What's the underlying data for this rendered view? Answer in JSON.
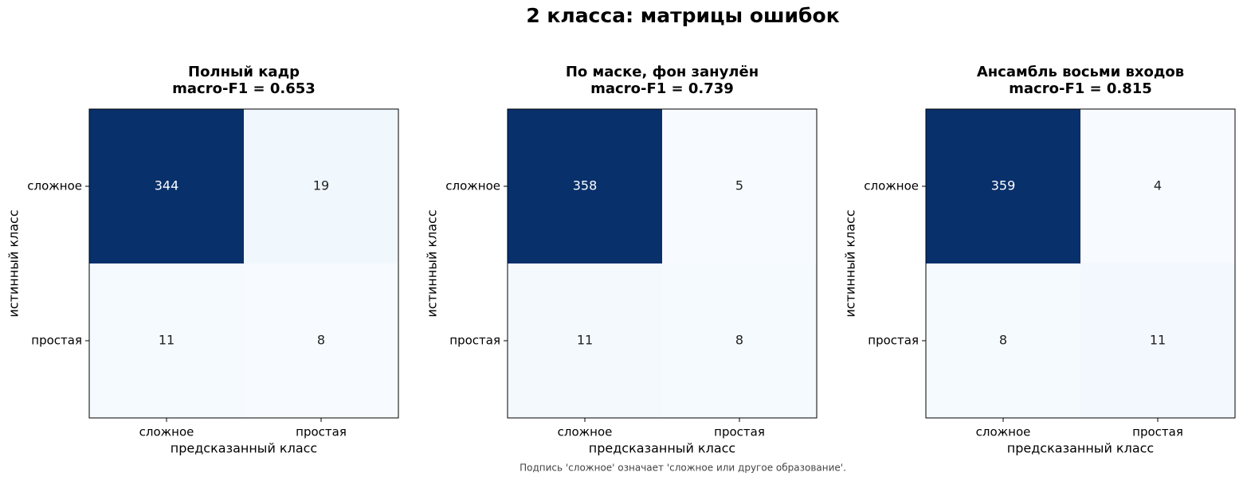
{
  "title": "2 класса: матрицы ошибок",
  "footnote": "Подпись 'сложное' означает 'сложное или другое образование'.",
  "chart_data": [
    {
      "type": "heatmap",
      "title": "Полный кадр",
      "subtitle": "macro-F1 = 0.653",
      "x_label": "предсказанный класс",
      "y_label": "истинный класс",
      "x_categories": [
        "сложное",
        "простая"
      ],
      "y_categories": [
        "сложное",
        "простая"
      ],
      "values": [
        [
          344,
          19
        ],
        [
          11,
          8
        ]
      ],
      "colormap": "Blues"
    },
    {
      "type": "heatmap",
      "title": "По маске, фон занулён",
      "subtitle": "macro-F1 = 0.739",
      "x_label": "предсказанный класс",
      "y_label": "истинный класс",
      "x_categories": [
        "сложное",
        "простая"
      ],
      "y_categories": [
        "сложное",
        "простая"
      ],
      "values": [
        [
          358,
          5
        ],
        [
          11,
          8
        ]
      ],
      "colormap": "Blues"
    },
    {
      "type": "heatmap",
      "title": "Ансамбль восьми входов",
      "subtitle": "macro-F1 = 0.815",
      "x_label": "предсказанный класс",
      "y_label": "истинный класс",
      "x_categories": [
        "сложное",
        "простая"
      ],
      "y_categories": [
        "сложное",
        "простая"
      ],
      "values": [
        [
          359,
          4
        ],
        [
          8,
          11
        ]
      ],
      "colormap": "Blues"
    }
  ]
}
